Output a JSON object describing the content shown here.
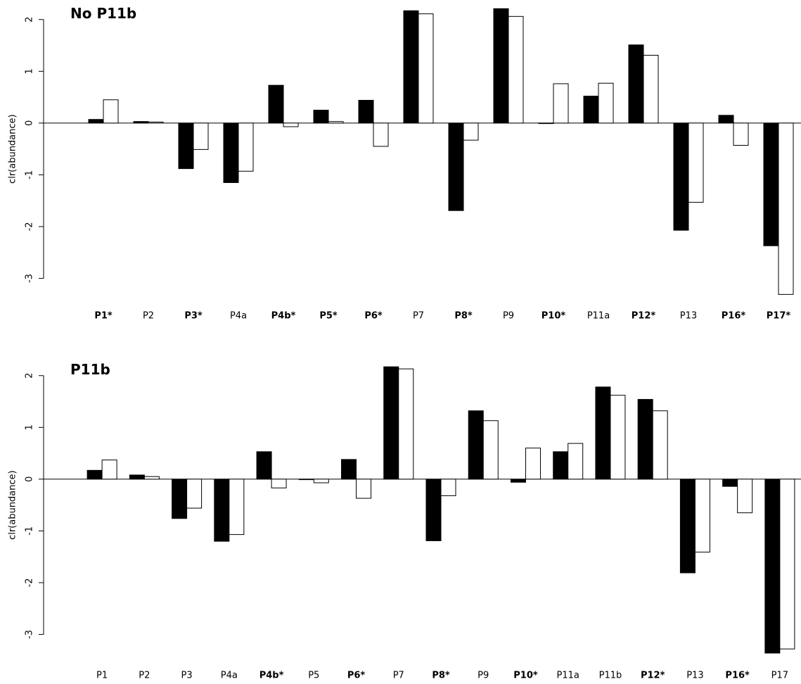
{
  "chart_data": [
    {
      "type": "bar",
      "title": "No P11b",
      "y_label": "clr(abundance)",
      "categories": [
        "P1*",
        "P2",
        "P3*",
        "P4a",
        "P4b*",
        "P5*",
        "P6*",
        "P7",
        "P8*",
        "P9",
        "P10*",
        "P11a",
        "P12*",
        "P13",
        "P16*",
        "P17*"
      ],
      "series": [
        {
          "color": "#000000",
          "values": [
            0.07,
            0.03,
            -0.88,
            -1.15,
            0.73,
            0.25,
            0.44,
            2.17,
            -1.69,
            2.21,
            -0.01,
            0.52,
            1.51,
            -2.07,
            0.15,
            -2.37
          ]
        },
        {
          "color": "#ffffff",
          "values": [
            0.45,
            0.02,
            -0.51,
            -0.93,
            -0.07,
            0.03,
            -0.45,
            2.11,
            -0.33,
            2.06,
            0.76,
            0.77,
            1.31,
            -1.53,
            -0.43,
            -3.31
          ]
        }
      ],
      "ylim": [
        -3.4,
        2.35
      ],
      "yticks": [
        -3,
        -2,
        -1,
        0,
        1,
        2
      ]
    },
    {
      "type": "bar",
      "title": "P11b",
      "y_label": "clr(abundance)",
      "categories": [
        "P1",
        "P2",
        "P3",
        "P4a",
        "P4b*",
        "P5",
        "P6*",
        "P7",
        "P8*",
        "P9",
        "P10*",
        "P11a",
        "P11b",
        "P12*",
        "P13",
        "P16*",
        "P17"
      ],
      "series": [
        {
          "color": "#000000",
          "values": [
            0.17,
            0.08,
            -0.76,
            -1.2,
            0.53,
            -0.01,
            0.38,
            2.17,
            -1.19,
            1.32,
            -0.06,
            0.53,
            1.78,
            1.54,
            -1.81,
            -0.14,
            -3.36
          ]
        },
        {
          "color": "#ffffff",
          "values": [
            0.37,
            0.05,
            -0.56,
            -1.07,
            -0.17,
            -0.07,
            -0.37,
            2.13,
            -0.32,
            1.13,
            0.6,
            0.69,
            1.62,
            1.32,
            -1.41,
            -0.65,
            -3.28
          ]
        }
      ],
      "ylim": [
        -3.4,
        2.35
      ],
      "yticks": [
        -3,
        -2,
        -1,
        0,
        1,
        2
      ]
    }
  ]
}
